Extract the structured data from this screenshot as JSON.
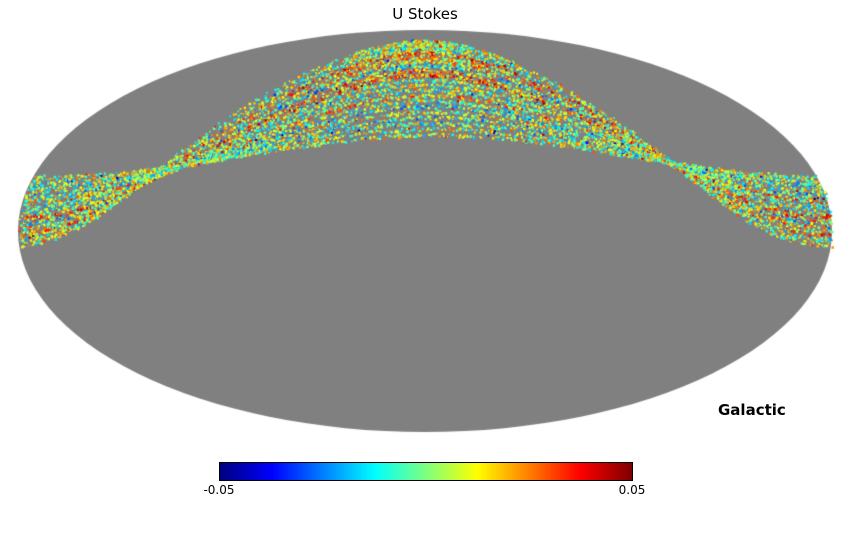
{
  "page": {
    "background_color": "#ffffff"
  },
  "chart_data": {
    "type": "heatmap",
    "title": "U Stokes",
    "projection": "mollweide",
    "coordinate_system_label": "Galactic",
    "colormap": "jet",
    "map_background_color": "#808080",
    "colorbar": {
      "vmin": -0.05,
      "vmax": 0.05,
      "min_label": "-0.05",
      "max_label": "0.05"
    },
    "description": "Partial-sky scan coverage: speckled strips of small positive and negative U Stokes values (mostly cyan/green with yellow, orange, red and blue specks) forming a band that arcs over the north galactic cap, pinching at two caustic nodes on the flanks and fanning out toward the left and right edges of the projection; the rest of the sky is unobserved (uniform gray).",
    "scan_coverage": {
      "n_strands": 20,
      "axis_lat_start_deg": 47.5,
      "axis_lat_end_deg": 82.0,
      "ring_radius_start_deg": 52.5,
      "ring_radius_end_deg": 62.0,
      "axis_lon_start_deg": 177.0,
      "axis_lon_end_deg": 185.0,
      "lon_step_deg": 0.55,
      "fill_probability": 0.7,
      "peak_band_lat_range_deg": [
        36,
        80
      ],
      "edge_fan_lat_range_deg": [
        -5,
        20
      ]
    }
  }
}
